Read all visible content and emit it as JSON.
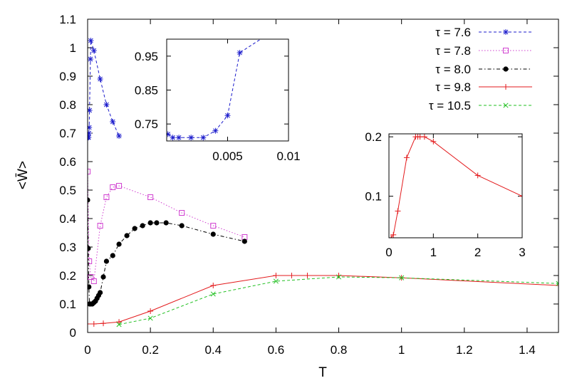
{
  "chart_data": [
    {
      "id": "main",
      "type": "line",
      "xlabel": "T",
      "ylabel": "<W̄>",
      "xlim": [
        0,
        1.5
      ],
      "ylim": [
        0,
        1.1
      ],
      "xticks": [
        0,
        0.2,
        0.4,
        0.6,
        0.8,
        1,
        1.2,
        1.4
      ],
      "xtick_labels": [
        "0",
        "0.2",
        "0.4",
        "0.6",
        "0.8",
        "1",
        "1.2",
        "1.4"
      ],
      "yticks": [
        0,
        0.1,
        0.2,
        0.3,
        0.4,
        0.5,
        0.6,
        0.7,
        0.8,
        0.9,
        1,
        1.1
      ],
      "ytick_labels": [
        "0",
        "0.1",
        "0.2",
        "0.3",
        "0.4",
        "0.5",
        "0.6",
        "0.7",
        "0.8",
        "0.9",
        "1",
        "1.1"
      ],
      "legend_position": "top-right",
      "series": [
        {
          "name": "τ = 7.6",
          "color": "#1c1ccc",
          "marker": "star",
          "dash": "dashed",
          "x": [
            0.0005,
            0.001,
            0.002,
            0.003,
            0.004,
            0.005,
            0.006,
            0.009,
            0.01,
            0.02,
            0.04,
            0.06,
            0.08,
            0.1
          ],
          "y": [
            0.69,
            0.685,
            0.685,
            0.685,
            0.7,
            0.72,
            0.78,
            0.96,
            1.025,
            0.99,
            0.89,
            0.8,
            0.74,
            0.69
          ]
        },
        {
          "name": "τ = 7.8",
          "color": "#d040d0",
          "marker": "open-square",
          "dash": "dotted",
          "x": [
            0,
            0.005,
            0.01,
            0.02,
            0.04,
            0.06,
            0.08,
            0.1,
            0.2,
            0.3,
            0.4,
            0.5
          ],
          "y": [
            0.565,
            0.25,
            0.195,
            0.18,
            0.375,
            0.475,
            0.51,
            0.515,
            0.475,
            0.42,
            0.375,
            0.335
          ]
        },
        {
          "name": "τ = 8.0",
          "color": "#000000",
          "marker": "filled-circle",
          "dash": "dashdot",
          "x": [
            0,
            0.002,
            0.004,
            0.006,
            0.01,
            0.015,
            0.02,
            0.025,
            0.03,
            0.035,
            0.04,
            0.05,
            0.06,
            0.08,
            0.1,
            0.125,
            0.15,
            0.175,
            0.2,
            0.22,
            0.25,
            0.3,
            0.4,
            0.5
          ],
          "y": [
            0.465,
            0.295,
            0.16,
            0.1,
            0.1,
            0.1,
            0.105,
            0.11,
            0.12,
            0.13,
            0.14,
            0.195,
            0.25,
            0.27,
            0.31,
            0.34,
            0.365,
            0.375,
            0.385,
            0.385,
            0.385,
            0.375,
            0.345,
            0.32
          ]
        },
        {
          "name": "τ = 9.8",
          "color": "#e31a1c",
          "marker": "plus",
          "dash": "solid",
          "x": [
            0,
            0.02,
            0.05,
            0.1,
            0.2,
            0.4,
            0.6,
            0.65,
            0.7,
            0.8,
            1,
            1.5
          ],
          "y": [
            0.03,
            0.03,
            0.032,
            0.037,
            0.075,
            0.165,
            0.2,
            0.2,
            0.2,
            0.2,
            0.192,
            0.165
          ]
        },
        {
          "name": "τ = 10.5",
          "color": "#22c022",
          "marker": "cross",
          "dash": "dashed",
          "x": [
            0.1,
            0.2,
            0.4,
            0.6,
            0.8,
            1.0,
            1.5
          ],
          "y": [
            0.028,
            0.05,
            0.135,
            0.18,
            0.195,
            0.192,
            0.172
          ]
        }
      ]
    },
    {
      "id": "inset_left",
      "type": "line",
      "xlim": [
        0,
        0.01
      ],
      "ylim": [
        0.7,
        1.0
      ],
      "xticks": [
        0.005,
        0.01
      ],
      "xtick_labels": [
        "0.005",
        "0.01"
      ],
      "yticks": [
        0.75,
        0.85,
        0.95
      ],
      "ytick_labels": [
        "0.75",
        "0.85",
        "0.95"
      ],
      "series": [
        {
          "series_ref": "τ = 7.6",
          "color": "#1c1ccc",
          "marker": "star",
          "dash": "dashed",
          "x": [
            0.0001,
            0.0005,
            0.001,
            0.002,
            0.003,
            0.004,
            0.005,
            0.006,
            0.009,
            0.01
          ],
          "y": [
            0.72,
            0.71,
            0.71,
            0.71,
            0.71,
            0.73,
            0.775,
            0.96,
            1.03,
            1.03
          ]
        }
      ]
    },
    {
      "id": "inset_right",
      "type": "line",
      "xlim": [
        0,
        3
      ],
      "ylim": [
        0.03,
        0.205
      ],
      "xticks": [
        0,
        1,
        2,
        3
      ],
      "xtick_labels": [
        "0",
        "1",
        "2",
        "3"
      ],
      "yticks": [
        0.1,
        0.2
      ],
      "ytick_labels": [
        "0.1",
        "0.2"
      ],
      "series": [
        {
          "series_ref": "τ = 9.8",
          "color": "#e31a1c",
          "marker": "plus",
          "dash": "solid",
          "x": [
            0,
            0.05,
            0.1,
            0.2,
            0.4,
            0.6,
            0.65,
            0.7,
            0.8,
            1,
            2,
            3
          ],
          "y": [
            0.03,
            0.03,
            0.035,
            0.075,
            0.165,
            0.2,
            0.2,
            0.2,
            0.2,
            0.192,
            0.135,
            0.1
          ]
        }
      ]
    }
  ]
}
